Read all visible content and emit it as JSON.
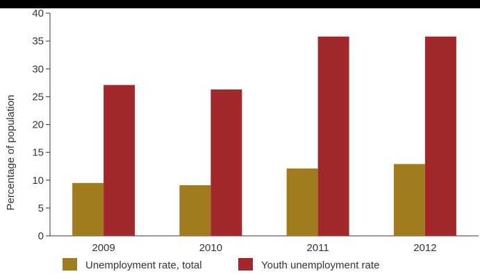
{
  "colors": {
    "header_bar": "#000000",
    "total": "#a07c1e",
    "youth": "#a2292b",
    "axis": "#333333",
    "text": "#333333"
  },
  "chart_data": {
    "type": "bar",
    "title": "",
    "xlabel": "",
    "ylabel": "Percentage of population",
    "categories": [
      "2009",
      "2010",
      "2011",
      "2012"
    ],
    "ylim": [
      0,
      40
    ],
    "yticks": [
      "0",
      "5",
      "10",
      "15",
      "20",
      "25",
      "30",
      "35",
      "40"
    ],
    "grid": false,
    "legend_position": "bottom",
    "series": [
      {
        "name": "Unemployment rate, total",
        "values": [
          9.5,
          9.1,
          12.1,
          12.9
        ],
        "color": "#a07c1e"
      },
      {
        "name": "Youth unemployment rate",
        "values": [
          27.1,
          26.3,
          35.8,
          35.8
        ],
        "color": "#a2292b"
      }
    ]
  }
}
